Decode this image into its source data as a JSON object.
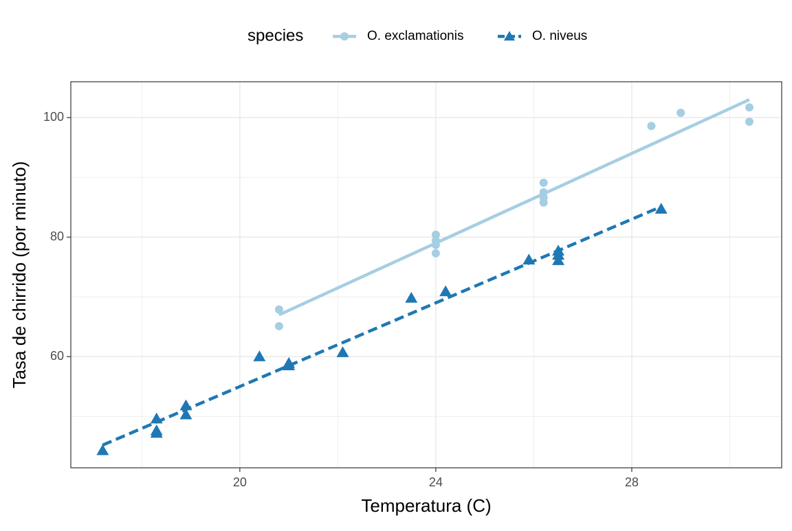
{
  "chart_data": {
    "type": "scatter",
    "x_label": "Temperatura (C)",
    "y_label": "Tasa de chirrido (por minuto)",
    "legend_title": "species",
    "legend_position": "top",
    "xlim": [
      16.55,
      31.06
    ],
    "ylim": [
      41.4,
      106.0
    ],
    "xticks": [
      20,
      24,
      28
    ],
    "yticks": [
      60,
      80,
      100
    ],
    "xminor": [
      18,
      22,
      26,
      30
    ],
    "yminor": [
      50,
      70,
      90
    ],
    "grid": true,
    "series": [
      {
        "name": "O. exclamationis",
        "color": "#a6cee3",
        "shape": "circle",
        "linestyle": "solid",
        "x": [
          20.8,
          20.8,
          24,
          24,
          24,
          24,
          26.2,
          26.2,
          26.2,
          26.2,
          28.4,
          29,
          30.4,
          30.4
        ],
        "values": [
          67.9,
          65.1,
          77.3,
          78.7,
          79.4,
          80.4,
          85.8,
          86.6,
          87.5,
          89.1,
          98.6,
          100.8,
          99.3,
          101.7
        ],
        "fit_x": [
          20.8,
          30.4
        ],
        "fit_y": [
          67.0,
          103.0
        ]
      },
      {
        "name": "O. niveus",
        "color": "#1f78b4",
        "shape": "triangle",
        "linestyle": "dashed",
        "x": [
          17.2,
          18.3,
          18.3,
          18.3,
          18.9,
          18.9,
          20.4,
          21,
          21,
          22.1,
          23.5,
          24.2,
          25.9,
          26.5,
          26.5,
          26.5,
          28.6
        ],
        "values": [
          44.3,
          47.2,
          47.6,
          49.6,
          50.3,
          51.8,
          60,
          58.5,
          58.9,
          60.7,
          69.8,
          70.9,
          76.2,
          76.1,
          77,
          77.7,
          84.7
        ],
        "fit_x": [
          17.2,
          28.6
        ],
        "fit_y": [
          45.2,
          85.1
        ]
      }
    ]
  }
}
